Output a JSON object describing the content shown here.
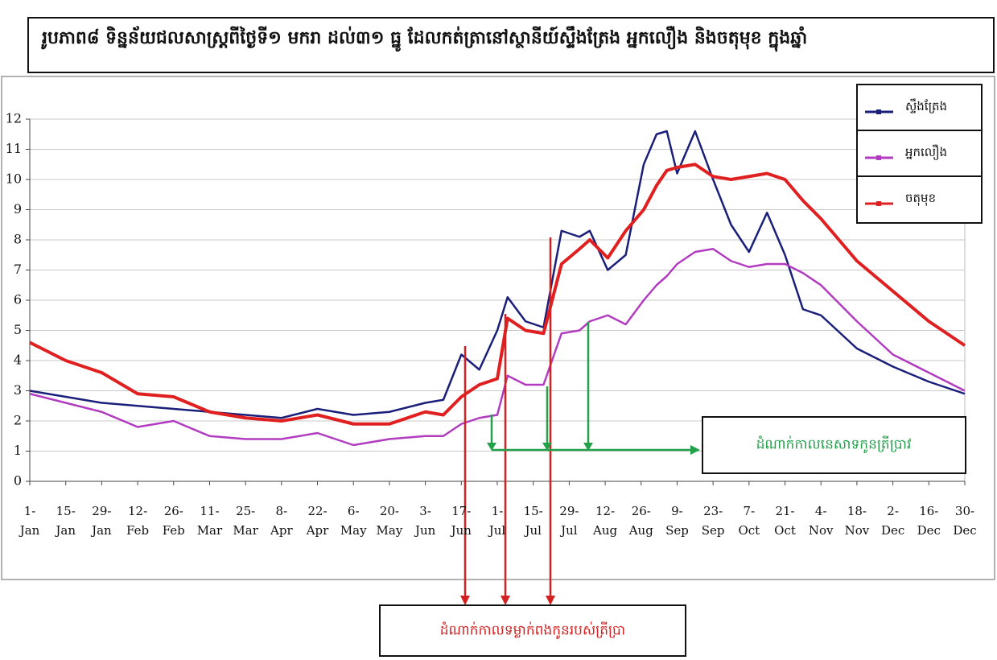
{
  "chart_data": {
    "type": "line",
    "title": "រូបភាព៨ ទិន្នន័យជលសាស្ត្រពីថ្ងៃទី១ មករា ដល់៣១ ធ្នូ ដែលកត់ត្រានៅស្ថានីយ៍ស្ទឹងត្រែង អ្នកលឿង និងចតុមុខ ក្នុងឆ្នាំ",
    "x": [
      0,
      14,
      28,
      42,
      56,
      70,
      84,
      98,
      112,
      126,
      140,
      154,
      161,
      168,
      175,
      182,
      186,
      193,
      200,
      207,
      214,
      218,
      225,
      232,
      239,
      244,
      248,
      252,
      259,
      266,
      273,
      280,
      287,
      294,
      301,
      308,
      322,
      336,
      350,
      364
    ],
    "series": [
      {
        "name": "ស្ទឹងត្រែង",
        "color": "#1a1f7a",
        "values": [
          3.0,
          2.8,
          2.6,
          2.5,
          2.4,
          2.3,
          2.2,
          2.1,
          2.4,
          2.2,
          2.3,
          2.6,
          2.7,
          4.2,
          3.7,
          5.0,
          6.1,
          5.3,
          5.1,
          8.3,
          8.1,
          8.3,
          7.0,
          7.5,
          10.5,
          11.5,
          11.6,
          10.2,
          11.6,
          10.0,
          8.5,
          7.6,
          8.9,
          7.5,
          5.7,
          5.5,
          4.4,
          3.8,
          3.3,
          2.9
        ]
      },
      {
        "name": "អ្នកលឿង",
        "color": "#b23cc0",
        "values": [
          2.9,
          2.6,
          2.3,
          1.8,
          2.0,
          1.5,
          1.4,
          1.4,
          1.6,
          1.2,
          1.4,
          1.5,
          1.5,
          1.9,
          2.1,
          2.2,
          3.5,
          3.2,
          3.2,
          4.9,
          5.0,
          5.3,
          5.5,
          5.2,
          6.0,
          6.5,
          6.8,
          7.2,
          7.6,
          7.7,
          7.3,
          7.1,
          7.2,
          7.2,
          6.9,
          6.5,
          5.3,
          4.2,
          3.6,
          3.0
        ]
      },
      {
        "name": "ចតុមុខ",
        "color": "#e02020",
        "values": [
          4.6,
          4.0,
          3.6,
          2.9,
          2.8,
          2.3,
          2.1,
          2.0,
          2.2,
          1.9,
          1.9,
          2.3,
          2.2,
          2.8,
          3.2,
          3.4,
          5.4,
          5.0,
          4.9,
          7.2,
          7.7,
          8.0,
          7.4,
          8.3,
          9.0,
          9.8,
          10.3,
          10.4,
          10.5,
          10.1,
          10.0,
          10.1,
          10.2,
          10.0,
          9.3,
          8.7,
          7.3,
          6.3,
          5.3,
          4.5
        ]
      }
    ],
    "xlim": [
      0,
      364
    ],
    "xticks": [
      {
        "value": 0,
        "label": "1-\nJan"
      },
      {
        "value": 14,
        "label": "15-\nJan"
      },
      {
        "value": 28,
        "label": "29-\nJan"
      },
      {
        "value": 42,
        "label": "12-\nFeb"
      },
      {
        "value": 56,
        "label": "26-\nFeb"
      },
      {
        "value": 70,
        "label": "11-\nMar"
      },
      {
        "value": 84,
        "label": "25-\nMar"
      },
      {
        "value": 98,
        "label": "8-\nApr"
      },
      {
        "value": 112,
        "label": "22-\nApr"
      },
      {
        "value": 126,
        "label": "6-\nMay"
      },
      {
        "value": 140,
        "label": "20-\nMay"
      },
      {
        "value": 154,
        "label": "3-\nJun"
      },
      {
        "value": 168,
        "label": "17-\nJun"
      },
      {
        "value": 182,
        "label": "1-\nJul"
      },
      {
        "value": 196,
        "label": "15-\nJul"
      },
      {
        "value": 210,
        "label": "29-\nJul"
      },
      {
        "value": 224,
        "label": "12-\nAug"
      },
      {
        "value": 238,
        "label": "26-\nAug"
      },
      {
        "value": 252,
        "label": "9-\nSep"
      },
      {
        "value": 266,
        "label": "23-\nSep"
      },
      {
        "value": 280,
        "label": "7-\nOct"
      },
      {
        "value": 294,
        "label": "21-\nOct"
      },
      {
        "value": 308,
        "label": "4-\nNov"
      },
      {
        "value": 322,
        "label": "18-\nNov"
      },
      {
        "value": 336,
        "label": "2-\nDec"
      },
      {
        "value": 350,
        "label": "16-\nDec"
      },
      {
        "value": 364,
        "label": "30-\nDec"
      }
    ],
    "ylim": [
      0,
      12
    ],
    "yticks": [
      0,
      1,
      2,
      3,
      4,
      5,
      6,
      7,
      8,
      9,
      10,
      11,
      12
    ],
    "grid": true,
    "annotations": [
      "ដំណាក់កាលនេសាទកូនត្រីប្រាវ",
      "ដំណាក់កាលទម្លាក់ពងកូនរបស់ត្រីប្រា"
    ]
  }
}
